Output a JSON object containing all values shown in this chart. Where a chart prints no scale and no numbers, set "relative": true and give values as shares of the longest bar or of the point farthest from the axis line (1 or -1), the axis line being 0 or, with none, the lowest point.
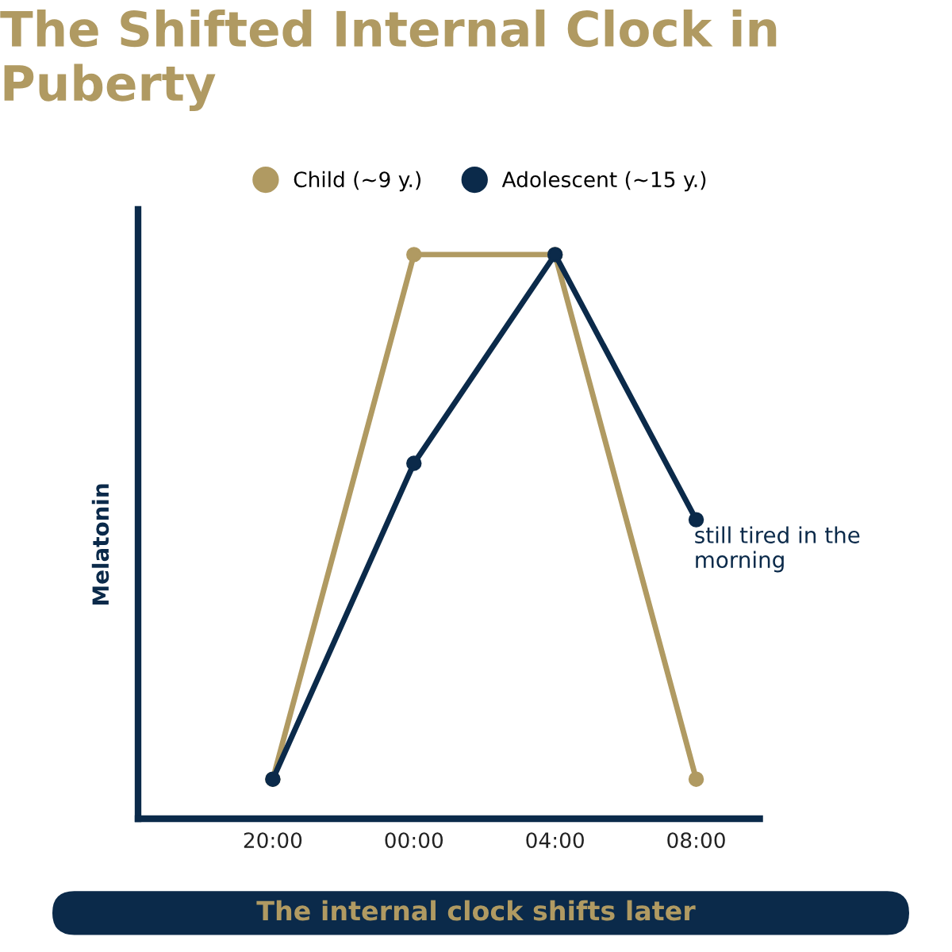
{
  "chart_data": {
    "type": "line",
    "title": "The Shifted Internal Clock in Puberty",
    "ylabel": "Melatonin",
    "categories": [
      "20:00",
      "00:00",
      "04:00",
      "08:00"
    ],
    "series": [
      {
        "name": "Child (~9 y.)",
        "color": "#b09a62",
        "values": [
          0.07,
          1.0,
          1.0,
          0.07
        ]
      },
      {
        "name": "Adolescent (~15 y.)",
        "color": "#0b2a4a",
        "values": [
          0.07,
          0.63,
          1.0,
          0.53
        ]
      }
    ],
    "relative": true,
    "legend": "top",
    "marker": "circle",
    "line_style": "solid",
    "grid": false,
    "annotations": [
      {
        "text": "still tired in the morning",
        "x": "08:00",
        "y": 0.53
      },
      "The internal clock shifts later"
    ]
  }
}
